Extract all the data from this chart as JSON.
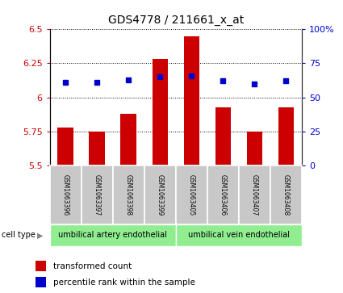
{
  "title": "GDS4778 / 211661_x_at",
  "samples": [
    "GSM1063396",
    "GSM1063397",
    "GSM1063398",
    "GSM1063399",
    "GSM1063405",
    "GSM1063406",
    "GSM1063407",
    "GSM1063408"
  ],
  "bar_values": [
    5.78,
    5.75,
    5.88,
    6.28,
    6.45,
    5.93,
    5.75,
    5.93
  ],
  "dot_values": [
    61,
    61,
    63,
    65,
    66,
    62,
    60,
    62
  ],
  "bar_bottom": 5.5,
  "ylim_left": [
    5.5,
    6.5
  ],
  "ylim_right": [
    0,
    100
  ],
  "yticks_left": [
    5.5,
    5.75,
    6.0,
    6.25,
    6.5
  ],
  "yticks_right": [
    0,
    25,
    50,
    75,
    100
  ],
  "ytick_labels_left": [
    "5.5",
    "5.75",
    "6",
    "6.25",
    "6.5"
  ],
  "ytick_labels_right": [
    "0",
    "25",
    "50",
    "75",
    "100%"
  ],
  "bar_color": "#cc0000",
  "dot_color": "#0000cc",
  "cell_type_labels": [
    "umbilical artery endothelial",
    "umbilical vein endothelial"
  ],
  "cell_type_groups": [
    4,
    4
  ],
  "cell_type_color": "#90ee90",
  "sample_box_color": "#c8c8c8",
  "grid_color": "#000000",
  "bg_color": "#ffffff",
  "tick_label_color_left": "#cc0000",
  "tick_label_color_right": "#0000cc",
  "legend_bar_label": "transformed count",
  "legend_dot_label": "percentile rank within the sample",
  "cell_type_text": "cell type",
  "figsize": [
    4.25,
    3.63
  ],
  "dpi": 100
}
